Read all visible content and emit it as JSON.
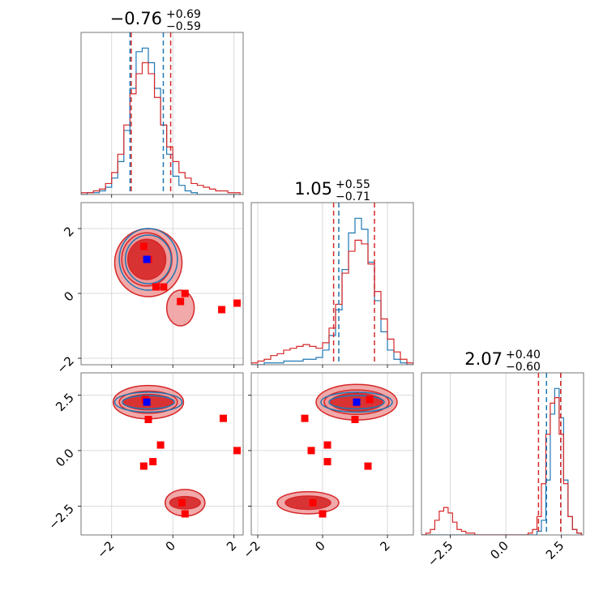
{
  "chart_data": {
    "type": "corner",
    "colors": {
      "red": "#d62728",
      "blue": "#1f77b4",
      "marker_red": "#ff0000",
      "marker_blue": "#0000ff",
      "fill_inner": "#d62728",
      "fill_outer": "#ef9a9a"
    },
    "titles": [
      {
        "main": "−0.76",
        "sup": "+0.69",
        "sub": "−0.59"
      },
      {
        "main": "1.05",
        "sup": "+0.55",
        "sub": "−0.71"
      },
      {
        "main": "2.07",
        "sup": "+0.40",
        "sub": "−0.60"
      }
    ],
    "axes_ranges": {
      "p1": [
        -3.0,
        2.3
      ],
      "p2": [
        -2.2,
        2.8
      ],
      "p3": [
        -3.8,
        3.5
      ]
    },
    "ticks": {
      "p1": [
        {
          "v": -2,
          "label": "−2"
        },
        {
          "v": 0,
          "label": "0"
        },
        {
          "v": 2,
          "label": "2"
        }
      ],
      "p2": [
        {
          "v": -2,
          "label": "−2"
        },
        {
          "v": 0,
          "label": "0"
        },
        {
          "v": 2,
          "label": "2"
        }
      ],
      "p3": [
        {
          "v": -2.5,
          "label": "−2.5"
        },
        {
          "v": 0,
          "label": "0.0"
        },
        {
          "v": 2.5,
          "label": "2.5"
        }
      ]
    },
    "quantile_lines": {
      "p1": {
        "red": [
          -1.36,
          -0.07
        ],
        "blue": [
          -1.4,
          -0.31
        ]
      },
      "p2": {
        "red": [
          0.34,
          1.6
        ],
        "blue": [
          0.5
        ]
      },
      "p3": {
        "red": [
          1.47,
          2.47
        ],
        "blue": [
          1.83,
          2.47
        ]
      }
    },
    "histograms": {
      "p1": {
        "x": [
          -2.9,
          -2.7,
          -2.5,
          -2.3,
          -2.1,
          -1.9,
          -1.7,
          -1.5,
          -1.3,
          -1.1,
          -0.9,
          -0.7,
          -0.5,
          -0.3,
          -0.1,
          0.1,
          0.3,
          0.5,
          0.7,
          0.9,
          1.1,
          1.3,
          1.5,
          1.7,
          1.9,
          2.1
        ],
        "red": [
          1,
          1,
          2,
          3,
          6,
          12,
          22,
          38,
          55,
          66,
          72,
          66,
          53,
          38,
          26,
          18,
          12,
          9,
          6,
          5,
          4,
          3,
          2,
          2,
          1,
          1
        ],
        "blue": [
          0,
          1,
          1,
          2,
          4,
          9,
          18,
          35,
          58,
          78,
          80,
          72,
          58,
          38,
          22,
          10,
          5,
          2,
          1,
          0,
          0,
          0,
          0,
          0,
          0,
          0
        ]
      },
      "p2": {
        "x": [
          -2.1,
          -1.9,
          -1.7,
          -1.5,
          -1.3,
          -1.1,
          -0.9,
          -0.7,
          -0.5,
          -0.3,
          -0.1,
          0.1,
          0.3,
          0.5,
          0.7,
          0.9,
          1.1,
          1.3,
          1.5,
          1.7,
          1.9,
          2.1,
          2.3,
          2.5,
          2.7
        ],
        "red": [
          1,
          2,
          3,
          5,
          6,
          8,
          9,
          10,
          11,
          10,
          9,
          12,
          20,
          33,
          50,
          62,
          68,
          66,
          55,
          40,
          25,
          14,
          7,
          3,
          1
        ],
        "blue": [
          0,
          0,
          1,
          1,
          1,
          2,
          2,
          2,
          3,
          3,
          4,
          8,
          16,
          30,
          52,
          72,
          80,
          74,
          56,
          35,
          18,
          8,
          3,
          1,
          0
        ]
      },
      "p3": {
        "x": [
          -3.7,
          -3.5,
          -3.3,
          -3.1,
          -2.9,
          -2.7,
          -2.5,
          -2.3,
          -2.1,
          -1.9,
          -1.7,
          -1.5,
          -1.3,
          -1.1,
          -0.9,
          -0.7,
          -0.5,
          -0.3,
          -0.1,
          0.1,
          0.3,
          0.5,
          0.7,
          0.9,
          1.1,
          1.3,
          1.5,
          1.7,
          1.9,
          2.1,
          2.3,
          2.5,
          2.7,
          2.9,
          3.1,
          3.3
        ],
        "red": [
          0,
          1,
          3,
          8,
          13,
          15,
          12,
          7,
          3,
          2,
          1,
          1,
          0,
          0,
          0,
          0,
          0,
          0,
          0,
          0,
          0,
          0,
          0,
          0,
          1,
          3,
          10,
          28,
          55,
          72,
          75,
          55,
          28,
          10,
          3,
          1
        ],
        "blue": [
          0,
          0,
          0,
          0,
          0,
          0,
          0,
          0,
          0,
          0,
          0,
          0,
          0,
          0,
          0,
          0,
          0,
          0,
          0,
          0,
          0,
          0,
          0,
          0,
          0,
          0,
          2,
          8,
          30,
          66,
          80,
          64,
          30,
          10,
          3,
          1
        ]
      }
    },
    "contours": {
      "p1_p2": [
        {
          "cx": -0.85,
          "cy": 1.05,
          "rx": 0.62,
          "ry": 0.62,
          "level": "inner"
        },
        {
          "cx": -0.85,
          "cy": 1.05,
          "rx": 0.82,
          "ry": 0.82,
          "level": "mid"
        },
        {
          "cx": -0.8,
          "cy": 0.95,
          "rx": 1.1,
          "ry": 1.05,
          "level": "outer"
        },
        {
          "cx": 0.25,
          "cy": -0.45,
          "rx": 0.45,
          "ry": 0.55,
          "level": "outer"
        },
        {
          "cx": -0.8,
          "cy": 1.05,
          "rx": 0.75,
          "ry": 0.75,
          "level": "blue"
        },
        {
          "cx": -0.8,
          "cy": 1.05,
          "rx": 0.95,
          "ry": 0.95,
          "level": "blue"
        }
      ],
      "p1_p3": [
        {
          "cx": -0.8,
          "cy": 2.18,
          "rx": 0.8,
          "ry": 0.35,
          "level": "inner"
        },
        {
          "cx": -0.8,
          "cy": 2.18,
          "rx": 0.95,
          "ry": 0.5,
          "level": "mid"
        },
        {
          "cx": -0.8,
          "cy": 2.18,
          "rx": 1.15,
          "ry": 0.75,
          "level": "outer"
        },
        {
          "cx": 0.4,
          "cy": -2.35,
          "rx": 0.5,
          "ry": 0.28,
          "level": "inner"
        },
        {
          "cx": 0.4,
          "cy": -2.35,
          "rx": 0.65,
          "ry": 0.6,
          "level": "outer"
        },
        {
          "cx": -0.8,
          "cy": 2.18,
          "rx": 0.85,
          "ry": 0.3,
          "level": "blue"
        },
        {
          "cx": -0.8,
          "cy": 2.18,
          "rx": 1.1,
          "ry": 0.45,
          "level": "blue"
        }
      ],
      "p2_p3": [
        {
          "cx": 1.05,
          "cy": 2.18,
          "rx": 0.8,
          "ry": 0.4,
          "level": "inner"
        },
        {
          "cx": 1.05,
          "cy": 2.18,
          "rx": 1.0,
          "ry": 0.55,
          "level": "mid"
        },
        {
          "cx": 1.05,
          "cy": 2.18,
          "rx": 1.25,
          "ry": 0.8,
          "level": "outer"
        },
        {
          "cx": -0.45,
          "cy": -2.35,
          "rx": 0.7,
          "ry": 0.3,
          "level": "inner"
        },
        {
          "cx": -0.45,
          "cy": -2.35,
          "rx": 0.95,
          "ry": 0.5,
          "level": "outer"
        },
        {
          "cx": 1.05,
          "cy": 2.18,
          "rx": 0.85,
          "ry": 0.3,
          "level": "blue"
        },
        {
          "cx": 1.05,
          "cy": 2.18,
          "rx": 1.1,
          "ry": 0.45,
          "level": "blue"
        }
      ]
    },
    "markers": {
      "p1_p2": {
        "red": [
          [
            -0.95,
            1.45
          ],
          [
            -0.8,
            1.05
          ],
          [
            -0.55,
            0.2
          ],
          [
            -0.3,
            0.2
          ],
          [
            0.4,
            0.0
          ],
          [
            0.25,
            -0.25
          ],
          [
            1.6,
            -0.5
          ],
          [
            2.1,
            -0.3
          ]
        ],
        "blue": [
          [
            -0.85,
            1.05
          ]
        ]
      },
      "p1_p3": {
        "red": [
          [
            -0.9,
            2.3
          ],
          [
            -0.8,
            1.4
          ],
          [
            -0.4,
            0.25
          ],
          [
            -0.65,
            -0.5
          ],
          [
            -0.95,
            -0.7
          ],
          [
            1.65,
            1.45
          ],
          [
            2.1,
            0.0
          ],
          [
            0.3,
            -2.35
          ],
          [
            0.4,
            -2.85
          ]
        ],
        "blue": [
          [
            -0.85,
            2.18
          ]
        ]
      },
      "p2_p3": {
        "red": [
          [
            1.45,
            2.3
          ],
          [
            1.0,
            1.4
          ],
          [
            -0.55,
            1.45
          ],
          [
            0.15,
            0.25
          ],
          [
            -0.35,
            0.0
          ],
          [
            0.15,
            -0.5
          ],
          [
            1.4,
            -0.7
          ],
          [
            -0.3,
            -2.35
          ],
          [
            0.0,
            -2.85
          ]
        ],
        "blue": [
          [
            1.05,
            2.18
          ]
        ]
      }
    }
  }
}
